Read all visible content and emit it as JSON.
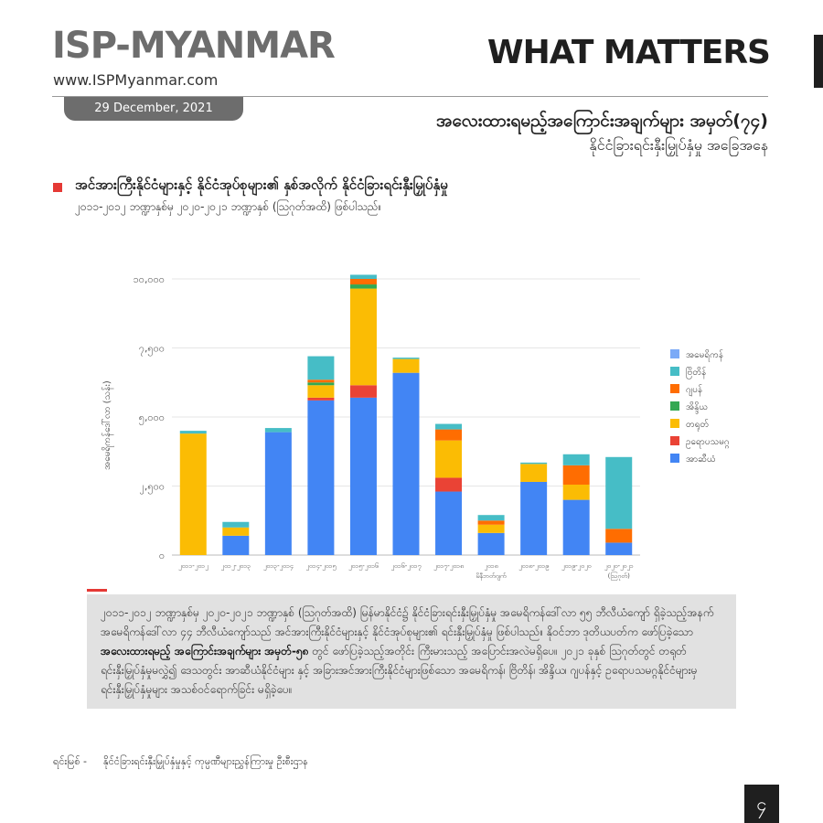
{
  "header": {
    "brand": "ISP-MYANMAR",
    "url": "www.ISPMyanmar.com",
    "series_name": "WHAT MATTERS",
    "date": "29 December, 2021",
    "title_line1": "အလေးထားရမည့်အကြောင်းအချက်များ အမှတ်(၇၄)",
    "title_line2": "နိုင်ငံခြားရင်းနှီးမြှုပ်နှံမှု အခြေအနေ"
  },
  "section": {
    "heading": "အင်အားကြီးနိုင်ငံများနှင့် နိုင်ငံအုပ်စုများ၏ နှစ်အလိုက် နိုင်ငံခြားရင်းနှီးမြှုပ်နှံမှု",
    "subheading": "၂၀၁၁-၂၀၁၂ ဘဏ္ဍာနှစ်မှ ၂၀၂၀-၂၀၂၁ ဘဏ္ဍာနှစ် (ဩဂုတ်အထိ) ဖြစ်ပါသည်။"
  },
  "chart_data": {
    "type": "bar",
    "stacked": true,
    "ylabel": "အမေရိကန်ဒေါ်လာ (သန်း)",
    "ylim": [
      0,
      10000
    ],
    "yticks": [
      "၀",
      "၂,၅၀၀",
      "၅,၀၀၀",
      "၇,၅၀၀",
      "၁၀,၀၀၀"
    ],
    "yticks_values": [
      0,
      2500,
      5000,
      7500,
      10000
    ],
    "grid": true,
    "legend_position": "right",
    "categories": [
      "၂၀၁၁-၂၀၁၂",
      "၂၀၁၂-၂၀၁၃",
      "၂၀၁၃-၂၀၁၄",
      "၂၀၁၄-၂၀၁၅",
      "၂၀၁၅-၂၀၁၆",
      "၂၀၁၆-၂၀၁၇",
      "၂၀၁၇-၂၀၁၈",
      "၂၀၁၈ မိနီဘတ်ဂျက်",
      "၂၀၁၈-၂၀၁၉",
      "၂၀၁၉-၂၀၂၀",
      "၂၀၂၀-၂၀၂၁ (ဩဂုတ်)"
    ],
    "series": [
      {
        "name": "အာဆီယံ",
        "color": "#4285f4",
        "values": [
          0,
          700,
          4450,
          5600,
          5700,
          6600,
          2300,
          800,
          2650,
          2000,
          450
        ]
      },
      {
        "name": "ဥရောပသမဂ္ဂ",
        "color": "#ea4335",
        "values": [
          0,
          0,
          0,
          100,
          450,
          0,
          500,
          0,
          0,
          0,
          0
        ]
      },
      {
        "name": "တရုတ်",
        "color": "#fbbc04",
        "values": [
          4400,
          300,
          0,
          450,
          3500,
          500,
          1350,
          300,
          650,
          550,
          0
        ]
      },
      {
        "name": "အိန္ဒိယ",
        "color": "#34a853",
        "values": [
          0,
          0,
          0,
          100,
          150,
          0,
          0,
          0,
          0,
          0,
          0
        ]
      },
      {
        "name": "ဂျပန်",
        "color": "#ff6d01",
        "values": [
          0,
          0,
          0,
          100,
          200,
          0,
          400,
          150,
          0,
          700,
          500
        ]
      },
      {
        "name": "ဗြိတိန်",
        "color": "#46bdc6",
        "values": [
          100,
          200,
          150,
          850,
          150,
          50,
          200,
          200,
          50,
          400,
          2600
        ]
      },
      {
        "name": "အမေရိကန်",
        "color": "#7baaf7",
        "values": [
          0,
          0,
          0,
          0,
          0,
          0,
          0,
          0,
          0,
          0,
          0
        ]
      }
    ],
    "legend_order": [
      "အမေရိကန်",
      "ဗြိတိန်",
      "ဂျပန်",
      "အိန္ဒိယ",
      "တရုတ်",
      "ဥရောပသမဂ္ဂ",
      "အာဆီယံ"
    ]
  },
  "note": {
    "part1": "၂၀၁၁-၂၀၁၂ ဘဏ္ဍာနှစ်မှ ၂၀၂၀-၂၀၂၁ ဘဏ္ဍာနှစ် (ဩဂုတ်အထိ) မြန်မာနိုင်ငံ၌ နိုင်ငံခြားရင်းနှီးမြှုပ်နှံမှု အမေရိကန်ဒေါ်လာ ၅၅ ဘီလီယံကျော် ရှိခဲ့သည့်အနက် အမေရိကန်ဒေါ်လာ ၄၄ ဘီလီယံကျော်သည် အင်အားကြီးနိုင်ငံများနှင့် နိုင်ငံအုပ်စုများ၏ ရင်းနှီးမြှုပ်နှံမှု ဖြစ်ပါသည်။ နိုဝင်ဘာ ဒုတိယပတ်က ဖော်ပြခဲ့သော ",
    "bold": "အလေးထားရမည့် အကြောင်းအချက်များ အမှတ်-၅၈",
    "part2": " တွင် ဖော်ပြခဲ့သည့်အတိုင်း ကြီးမားသည့် အပြောင်းအလဲမရှိပေ။ ၂၀၂၁ ခုနှစ် ဩဂုတ်တွင် တရုတ်ရင်းနှီးမြှုပ်နှံမှုမလွှဲ၍ ဒေသတွင်း အာဆီယံနိုင်ငံများ နှင့် အခြားအင်အားကြီးနိုင်ငံများဖြစ်သော အမေရိကန်၊ ဗြိတိန်၊ အိန္ဒိယ၊ ဂျပန်နှင့် ဥရောပသမဂ္ဂနိုင်ငံများမှ ရင်းနှီးမြှုပ်နှံမှုများ အသစ်ဝင်ရောက်ခြင်း မရှိခဲ့ပေ။"
  },
  "source": {
    "label": "ရင်းမြစ် -",
    "text": "နိုင်ငံခြားရင်းနှီးမြှုပ်နှံမှုနှင့် ကုမ္ပဏီများညွှန်ကြားမှု ဦးစီးဌာန"
  },
  "page_number": "၄"
}
